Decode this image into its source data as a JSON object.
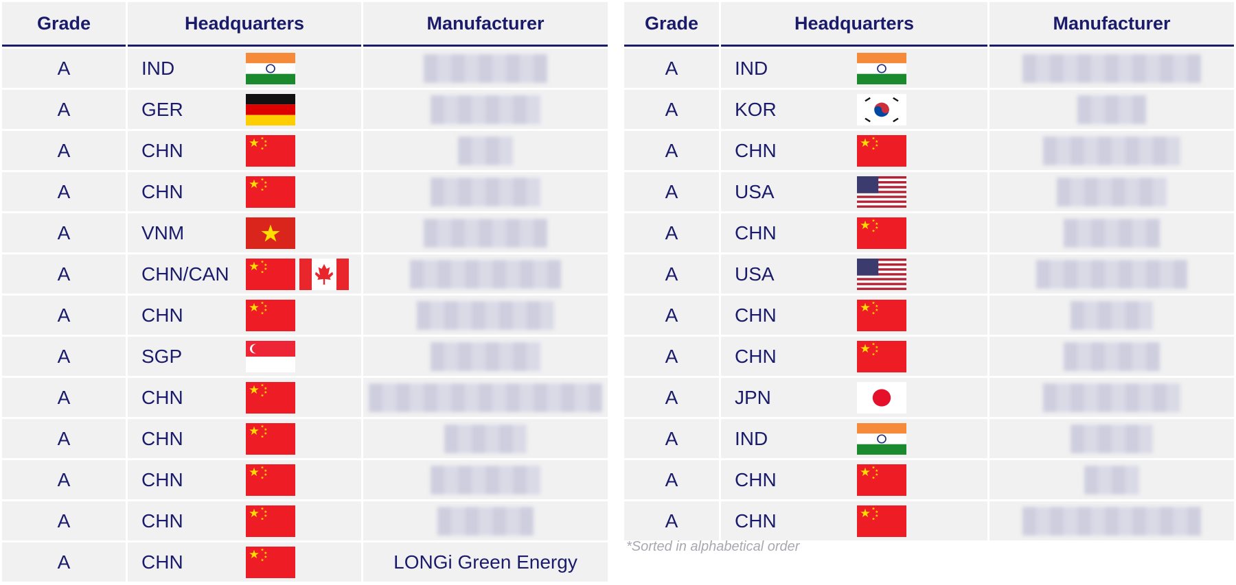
{
  "left": {
    "header": [
      "Grade",
      "Headquarters",
      "Manufacturer"
    ],
    "rows": [
      {
        "grade": "A",
        "hq": "IND"
      },
      {
        "grade": "A",
        "hq": "GER"
      },
      {
        "grade": "A",
        "hq": "CHN"
      },
      {
        "grade": "A",
        "hq": "CHN"
      },
      {
        "grade": "A",
        "hq": "VNM"
      },
      {
        "grade": "A",
        "hq": "CHN/CAN"
      },
      {
        "grade": "A",
        "hq": "CHN"
      },
      {
        "grade": "A",
        "hq": "SGP"
      },
      {
        "grade": "A",
        "hq": "CHN"
      },
      {
        "grade": "A",
        "hq": "CHN"
      },
      {
        "grade": "A",
        "hq": "CHN"
      },
      {
        "grade": "A",
        "hq": "CHN"
      },
      {
        "grade": "A",
        "hq": "CHN",
        "manufacturer": "LONGi Green Energy"
      }
    ]
  },
  "right": {
    "header": [
      "Grade",
      "Headquarters",
      "Manufacturer"
    ],
    "rows": [
      {
        "grade": "A",
        "hq": "IND"
      },
      {
        "grade": "A",
        "hq": "KOR"
      },
      {
        "grade": "A",
        "hq": "CHN"
      },
      {
        "grade": "A",
        "hq": "USA"
      },
      {
        "grade": "A",
        "hq": "CHN"
      },
      {
        "grade": "A",
        "hq": "USA"
      },
      {
        "grade": "A",
        "hq": "CHN"
      },
      {
        "grade": "A",
        "hq": "CHN"
      },
      {
        "grade": "A",
        "hq": "JPN"
      },
      {
        "grade": "A",
        "hq": "IND"
      },
      {
        "grade": "A",
        "hq": "CHN"
      },
      {
        "grade": "A",
        "hq": "CHN"
      }
    ]
  },
  "footnote": "*Sorted in alphabetical order"
}
